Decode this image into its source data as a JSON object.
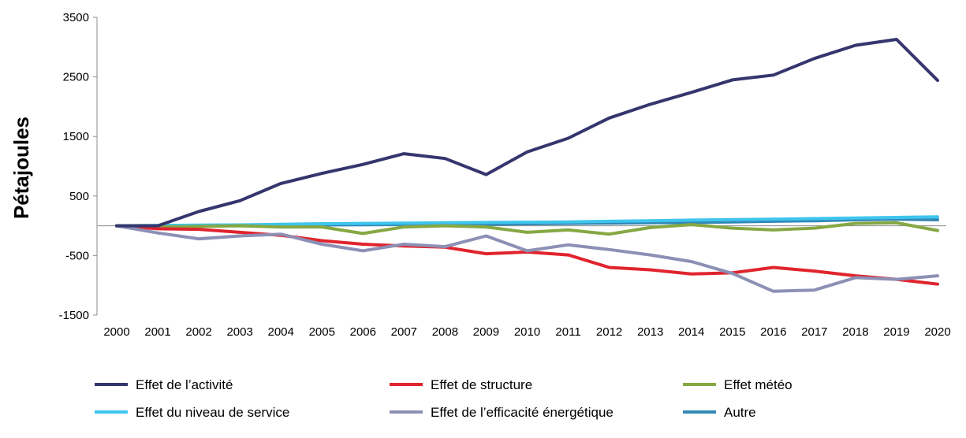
{
  "chart_data": {
    "type": "line",
    "title": "",
    "xlabel": "",
    "ylabel": "Pétajoules",
    "ylim": [
      -1500,
      3500
    ],
    "yticks": [
      3500,
      2500,
      1500,
      500,
      -500,
      -1500
    ],
    "ytick_labels": [
      "3500",
      "2500",
      "1500",
      "500",
      "-500",
      "-1500"
    ],
    "grid": false,
    "legend_position": "bottom",
    "categories": [
      "2000",
      "2001",
      "2002",
      "2003",
      "2004",
      "2005",
      "2006",
      "2007",
      "2008",
      "2009",
      "2010",
      "2011",
      "2012",
      "2013",
      "2014",
      "2015",
      "2016",
      "2017",
      "2018",
      "2019",
      "2020"
    ],
    "series": [
      {
        "name": "Effet de l’activité",
        "color": "#35366e",
        "values": [
          0,
          0,
          240,
          420,
          710,
          880,
          1030,
          1210,
          1130,
          860,
          1240,
          1470,
          1810,
          2040,
          2240,
          2450,
          2530,
          2810,
          3030,
          3130,
          2440
        ]
      },
      {
        "name": "Effet de structure",
        "color": "#e0242e",
        "values": [
          0,
          -50,
          -60,
          -110,
          -160,
          -250,
          -310,
          -340,
          -360,
          -470,
          -440,
          -490,
          -700,
          -740,
          -810,
          -790,
          -700,
          -760,
          -840,
          -900,
          -980
        ]
      },
      {
        "name": "Effet météo",
        "color": "#86a843",
        "values": [
          0,
          -20,
          -10,
          0,
          -20,
          -20,
          -130,
          -20,
          0,
          -20,
          -110,
          -70,
          -140,
          -30,
          20,
          -40,
          -70,
          -40,
          40,
          50,
          -80
        ]
      },
      {
        "name": "Effet du niveau de service",
        "color": "#3ec5ee",
        "values": [
          0,
          5,
          10,
          15,
          25,
          35,
          40,
          45,
          50,
          55,
          60,
          65,
          75,
          85,
          95,
          105,
          110,
          120,
          130,
          140,
          150
        ]
      },
      {
        "name": "Effet de l’efficacité énergétique",
        "color": "#8d90b5",
        "values": [
          0,
          -120,
          -220,
          -170,
          -140,
          -310,
          -420,
          -310,
          -350,
          -170,
          -420,
          -320,
          -400,
          -490,
          -600,
          -800,
          -1100,
          -1080,
          -870,
          -900,
          -840
        ]
      },
      {
        "name": "Autre",
        "color": "#3288b6",
        "values": [
          0,
          5,
          8,
          10,
          12,
          15,
          18,
          22,
          28,
          25,
          35,
          40,
          45,
          50,
          55,
          65,
          75,
          85,
          100,
          110,
          100
        ]
      }
    ]
  }
}
